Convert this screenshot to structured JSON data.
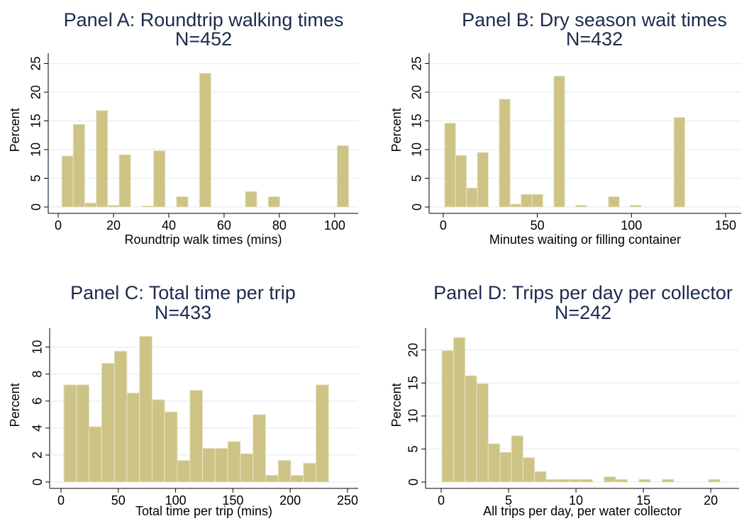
{
  "chart_data": [
    {
      "type": "histogram",
      "title": "Panel A: Roundtrip walking times",
      "subtitle": "N=452",
      "xlabel": "Roundtrip walk times (mins)",
      "ylabel": "Percent",
      "color": "#ccc385",
      "grid": true,
      "bins": [
        1.3,
        5.45,
        9.6,
        13.75,
        17.9,
        22.05,
        26.2,
        30.35,
        34.5,
        38.65,
        42.8,
        46.95,
        51.1,
        55.25,
        59.4,
        63.55,
        67.7,
        71.85,
        76,
        80.15,
        84.3,
        88.45,
        92.6,
        96.75,
        100.9,
        105.05
      ],
      "values": [
        8.9,
        14.4,
        0.7,
        16.8,
        0.3,
        9.1,
        0,
        0.2,
        9.8,
        0,
        1.8,
        0,
        23.3,
        0,
        0,
        0,
        2.7,
        0,
        1.8,
        0,
        0,
        0,
        0,
        0,
        10.7
      ],
      "xlim": [
        -3.6,
        108.5
      ],
      "ylim": [
        0,
        26.8
      ],
      "xticks": [
        0,
        20,
        40,
        60,
        80,
        100
      ],
      "yticks": [
        0,
        5,
        10,
        15,
        20,
        25
      ]
    },
    {
      "type": "histogram",
      "title": "Panel B: Dry season wait times",
      "subtitle": "N=432",
      "xlabel": "Minutes waiting or filling container",
      "ylabel": "Percent",
      "color": "#ccc385",
      "grid": true,
      "bins": [
        0.75,
        6.55,
        12.35,
        18.15,
        23.95,
        29.75,
        35.55,
        41.35,
        47.15,
        52.95,
        58.75,
        64.55,
        70.35,
        76.15,
        81.95,
        87.75,
        93.55,
        99.35,
        105.15,
        110.95,
        116.75,
        122.55,
        128.35
      ],
      "values": [
        14.6,
        9.0,
        3.3,
        9.5,
        0,
        18.8,
        0.5,
        2.2,
        2.2,
        0,
        22.8,
        0,
        0.3,
        0,
        0,
        1.8,
        0,
        0.3,
        0,
        0,
        0,
        15.6
      ],
      "xlim": [
        -7.5,
        158.3
      ],
      "ylim": [
        0,
        26.8
      ],
      "xticks": [
        0,
        50,
        100,
        150
      ],
      "yticks": [
        0,
        5,
        10,
        15,
        20,
        25
      ]
    },
    {
      "type": "histogram",
      "title": "Panel C: Total time per trip",
      "subtitle": "N=433",
      "xlabel": "Total time per trip (mins)",
      "ylabel": "Percent",
      "color": "#ccc385",
      "grid": true,
      "bins": [
        2.5,
        13.5,
        24.5,
        35.5,
        46.5,
        57.5,
        68.5,
        79.5,
        90.5,
        101.5,
        112.5,
        123.5,
        134.5,
        145.5,
        156.5,
        167.5,
        178.5,
        189.5,
        200.5,
        211.5,
        222.5,
        233.5
      ],
      "values": [
        7.2,
        7.2,
        4.1,
        8.8,
        9.7,
        6.6,
        10.8,
        6.1,
        5.2,
        1.6,
        6.8,
        2.5,
        2.5,
        3.0,
        2.1,
        5.0,
        0.5,
        1.6,
        0.5,
        1.4,
        7.2
      ],
      "xlim": [
        -9.9,
        259.3
      ],
      "ylim": [
        0,
        11.4
      ],
      "xticks": [
        0,
        50,
        100,
        150,
        200,
        250
      ],
      "yticks": [
        0,
        2,
        4,
        6,
        8,
        10
      ]
    },
    {
      "type": "histogram",
      "title": "Panel D: Trips per day per collector",
      "subtitle": "N=242",
      "xlabel": "All trips per day, per water collector",
      "ylabel": "Percent",
      "color": "#ccc385",
      "grid": true,
      "bins": [
        0.05,
        0.91,
        1.77,
        2.63,
        3.49,
        4.35,
        5.21,
        6.07,
        6.93,
        7.79,
        8.65,
        9.51,
        10.37,
        11.23,
        12.09,
        12.95,
        13.81,
        14.67,
        15.53,
        16.39,
        17.25,
        18.11,
        18.97,
        19.83,
        20.69
      ],
      "values": [
        19.9,
        21.9,
        16.1,
        14.9,
        5.8,
        4.5,
        7.0,
        3.7,
        1.6,
        0.4,
        0.4,
        0.4,
        0.4,
        0,
        0.8,
        0.4,
        0,
        0.4,
        0,
        0.4,
        0,
        0,
        0,
        0.4
      ],
      "xlim": [
        -1.16,
        22.1
      ],
      "ylim": [
        0,
        23.3
      ],
      "xticks": [
        0,
        5,
        10,
        15,
        20
      ],
      "yticks": [
        0,
        5,
        10,
        15,
        20
      ]
    }
  ]
}
